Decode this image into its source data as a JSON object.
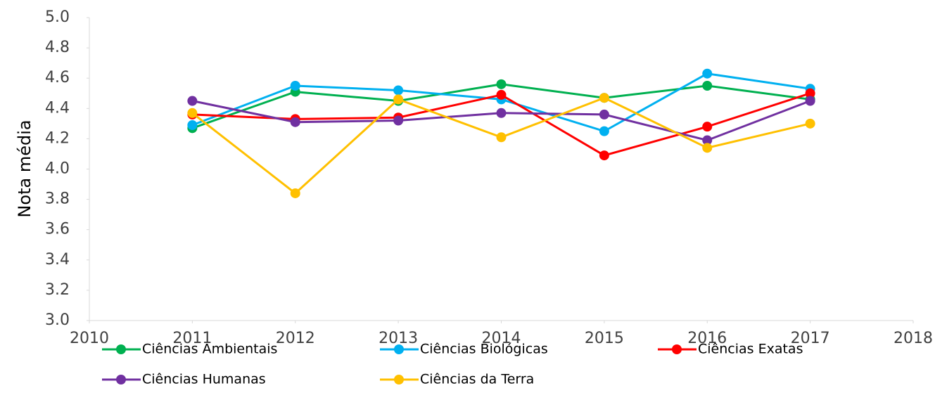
{
  "chart_data": {
    "type": "line",
    "ylabel": "Nota média",
    "x": [
      2011,
      2012,
      2013,
      2014,
      2015,
      2016,
      2017
    ],
    "series": [
      {
        "name": "Ciências Ambientais",
        "color": "#00b050",
        "values": [
          4.27,
          4.51,
          4.45,
          4.56,
          4.47,
          4.55,
          4.46
        ]
      },
      {
        "name": "Ciências Biológicas",
        "color": "#00b0f0",
        "values": [
          4.29,
          4.55,
          4.52,
          4.46,
          4.25,
          4.63,
          4.53
        ]
      },
      {
        "name": "Ciências Exatas",
        "color": "#ff0000",
        "values": [
          4.36,
          4.33,
          4.34,
          4.49,
          4.09,
          4.28,
          4.5
        ]
      },
      {
        "name": "Ciências Humanas",
        "color": "#7030a0",
        "values": [
          4.45,
          4.31,
          4.32,
          4.37,
          4.36,
          4.19,
          4.45
        ]
      },
      {
        "name": "Ciências da Terra",
        "color": "#ffc000",
        "values": [
          4.37,
          3.84,
          4.46,
          4.21,
          4.47,
          4.14,
          4.3
        ]
      }
    ],
    "xlim": [
      2010,
      2018
    ],
    "xticks": [
      2010,
      2011,
      2012,
      2013,
      2014,
      2015,
      2016,
      2017,
      2018
    ],
    "ylim": [
      3.0,
      5.0
    ],
    "yticks": [
      {
        "value": 3.0,
        "label": "3.0"
      },
      {
        "value": 3.2,
        "label": "3.2"
      },
      {
        "value": 3.4,
        "label": "3.4"
      },
      {
        "value": 3.6,
        "label": "3.6"
      },
      {
        "value": 3.8,
        "label": "3.8"
      },
      {
        "value": 4.0,
        "label": "4.0"
      },
      {
        "value": 4.2,
        "label": "4.2"
      },
      {
        "value": 4.4,
        "label": "4.4"
      },
      {
        "value": 4.6,
        "label": "4.6"
      },
      {
        "value": 4.8,
        "label": "4.8"
      },
      {
        "value": 5.0,
        "label": "5.0"
      }
    ],
    "grid": false,
    "legend": "bottom"
  }
}
